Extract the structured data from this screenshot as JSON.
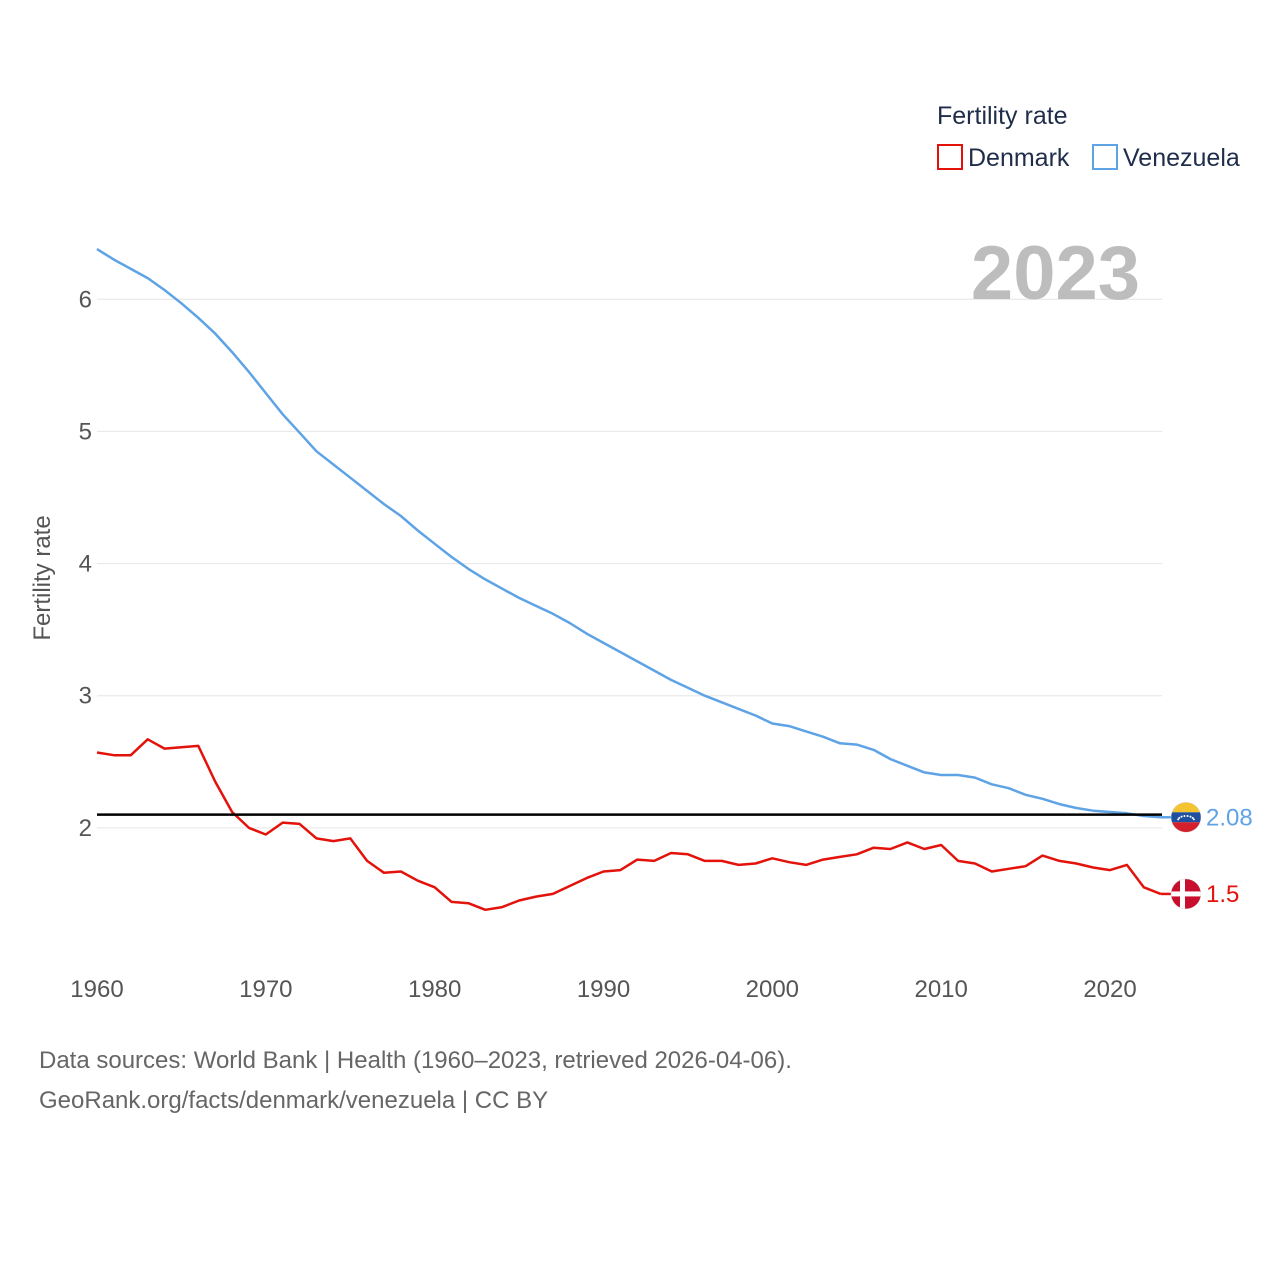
{
  "source": {
    "line1": "Data sources: World Bank | Health (1960–2023, retrieved 2026-04-06).",
    "line2": "GeoRank.org/facts/denmark/venezuela | CC BY"
  },
  "colors": {
    "denmark": "#e3120b",
    "venezuela": "#5ea3e6",
    "reference": "#000000"
  },
  "chart_data": {
    "type": "line",
    "year_label": "2023",
    "ylabel": "Fertility rate",
    "legend_title": "Fertility rate",
    "legend_position": "top-right",
    "xlim": [
      1960,
      2024.5
    ],
    "ylim": [
      1.0,
      6.6
    ],
    "xticks": [
      1960,
      1970,
      1980,
      1990,
      2000,
      2010,
      2020
    ],
    "yticks": [
      2,
      3,
      4,
      5,
      6
    ],
    "reference_line": 2.1,
    "x": [
      1960,
      1961,
      1962,
      1963,
      1964,
      1965,
      1966,
      1967,
      1968,
      1969,
      1970,
      1971,
      1972,
      1973,
      1974,
      1975,
      1976,
      1977,
      1978,
      1979,
      1980,
      1981,
      1982,
      1983,
      1984,
      1985,
      1986,
      1987,
      1988,
      1989,
      1990,
      1991,
      1992,
      1993,
      1994,
      1995,
      1996,
      1997,
      1998,
      1999,
      2000,
      2001,
      2002,
      2003,
      2004,
      2005,
      2006,
      2007,
      2008,
      2009,
      2010,
      2011,
      2012,
      2013,
      2014,
      2015,
      2016,
      2017,
      2018,
      2019,
      2020,
      2021,
      2022,
      2023
    ],
    "series": [
      {
        "name": "Denmark",
        "end_label": "1.5",
        "values": [
          2.57,
          2.55,
          2.55,
          2.67,
          2.6,
          2.61,
          2.62,
          2.35,
          2.12,
          2.0,
          1.95,
          2.04,
          2.03,
          1.92,
          1.9,
          1.92,
          1.75,
          1.66,
          1.67,
          1.6,
          1.55,
          1.44,
          1.43,
          1.38,
          1.4,
          1.45,
          1.48,
          1.5,
          1.56,
          1.62,
          1.67,
          1.68,
          1.76,
          1.75,
          1.81,
          1.8,
          1.75,
          1.75,
          1.72,
          1.73,
          1.77,
          1.74,
          1.72,
          1.76,
          1.78,
          1.8,
          1.85,
          1.84,
          1.89,
          1.84,
          1.87,
          1.75,
          1.73,
          1.67,
          1.69,
          1.71,
          1.79,
          1.75,
          1.73,
          1.7,
          1.68,
          1.72,
          1.55,
          1.5
        ]
      },
      {
        "name": "Venezuela",
        "end_label": "2.08",
        "values": [
          6.38,
          6.3,
          6.23,
          6.16,
          6.07,
          5.97,
          5.86,
          5.74,
          5.6,
          5.45,
          5.29,
          5.13,
          4.99,
          4.85,
          4.75,
          4.65,
          4.55,
          4.45,
          4.36,
          4.25,
          4.15,
          4.05,
          3.96,
          3.88,
          3.81,
          3.74,
          3.68,
          3.62,
          3.55,
          3.47,
          3.4,
          3.33,
          3.26,
          3.19,
          3.12,
          3.06,
          3.0,
          2.95,
          2.9,
          2.85,
          2.79,
          2.77,
          2.73,
          2.69,
          2.64,
          2.63,
          2.59,
          2.52,
          2.47,
          2.42,
          2.4,
          2.4,
          2.38,
          2.33,
          2.3,
          2.25,
          2.22,
          2.18,
          2.15,
          2.13,
          2.12,
          2.11,
          2.09,
          2.08
        ]
      }
    ]
  }
}
